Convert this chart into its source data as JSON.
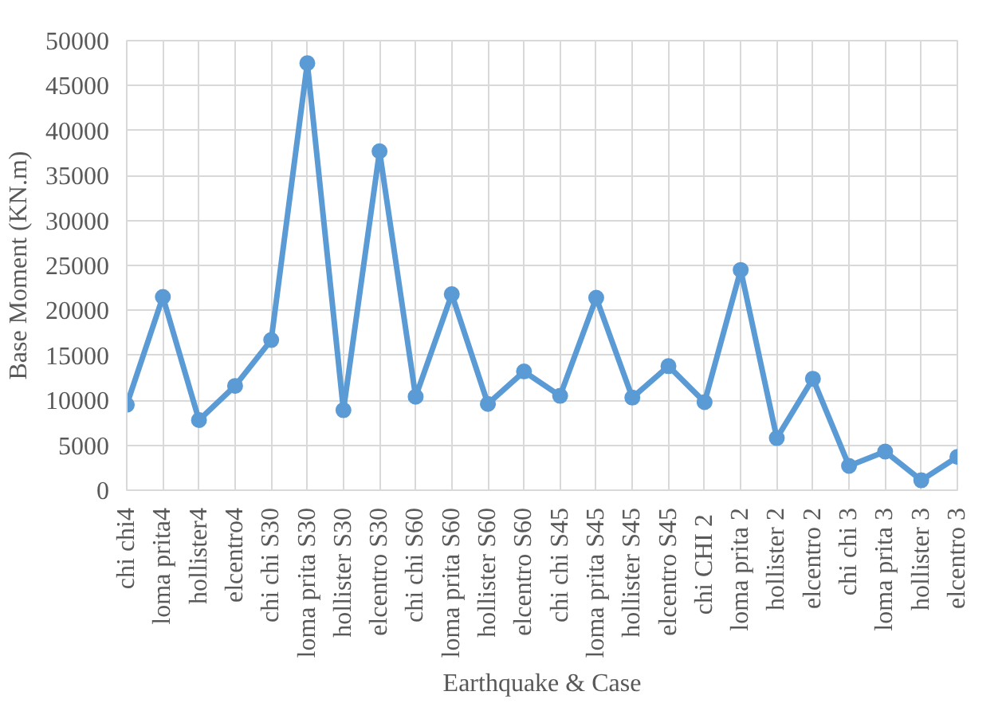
{
  "chart_data": {
    "type": "line",
    "xlabel": "Earthquake & Case",
    "ylabel": "Base Moment (KN.m)",
    "categories": [
      "chi chi4",
      "loma prita4",
      "hollister4",
      "elcentro4",
      "chi chi S30",
      "loma prita S30",
      "hollister S30",
      "elcentro S30",
      "chi chi S60",
      "loma prita S60",
      "hollister S60",
      "elcentro S60",
      "chi chi S45",
      "loma prita S45",
      "hollister S45",
      "elcentro S45",
      "chi  CHI 2",
      "loma prita 2",
      "hollister 2",
      "elcentro 2",
      "chi chi 3",
      "loma prita 3",
      "hollister 3",
      "elcentro 3"
    ],
    "series": [
      {
        "color": "#5b9bd5",
        "values": [
          9500,
          21500,
          7800,
          11600,
          16700,
          47500,
          8900,
          37700,
          10400,
          21800,
          9600,
          13200,
          10500,
          21400,
          10300,
          13800,
          9800,
          24500,
          5800,
          12400,
          2700,
          4300,
          1100,
          3700
        ]
      }
    ],
    "ylim": [
      0,
      50000
    ],
    "yticks": [
      0,
      5000,
      10000,
      15000,
      20000,
      25000,
      30000,
      35000,
      40000,
      45000,
      50000
    ],
    "grid": true,
    "marker": "circle",
    "line_style": "solid"
  }
}
